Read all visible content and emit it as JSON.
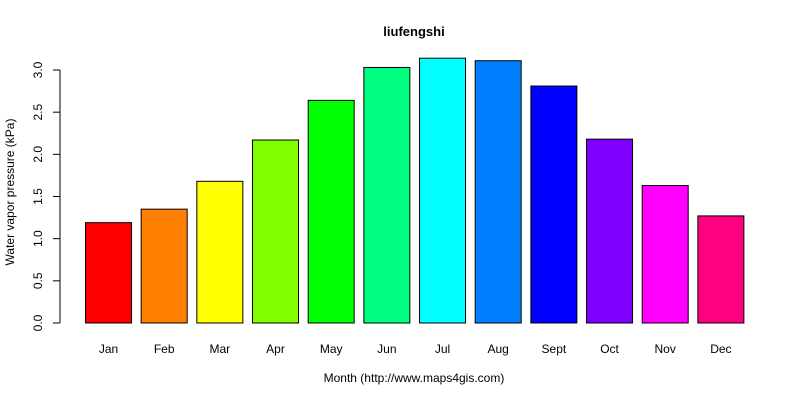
{
  "chart_data": {
    "type": "bar",
    "title": "liufengshi",
    "xlabel": "Month (http://www.maps4gis.com)",
    "ylabel": "Water vapor pressure (kPa)",
    "categories": [
      "Jan",
      "Feb",
      "Mar",
      "Apr",
      "May",
      "Jun",
      "Jul",
      "Aug",
      "Sept",
      "Oct",
      "Nov",
      "Dec"
    ],
    "values": [
      1.19,
      1.35,
      1.68,
      2.17,
      2.64,
      3.03,
      3.14,
      3.11,
      2.81,
      2.18,
      1.63,
      1.27
    ],
    "colors": [
      "#FF0000",
      "#FF8000",
      "#FFFF00",
      "#80FF00",
      "#00FF00",
      "#00FF80",
      "#00FFFF",
      "#0080FF",
      "#0000FF",
      "#8000FF",
      "#FF00FF",
      "#FF0080"
    ],
    "ylim": [
      0,
      3.0
    ],
    "yticks": [
      0.0,
      0.5,
      1.0,
      1.5,
      2.0,
      2.5,
      3.0
    ],
    "ytick_labels": [
      "0.0",
      "0.5",
      "1.0",
      "1.5",
      "2.0",
      "2.5",
      "3.0"
    ],
    "grid": false,
    "legend": "none"
  }
}
